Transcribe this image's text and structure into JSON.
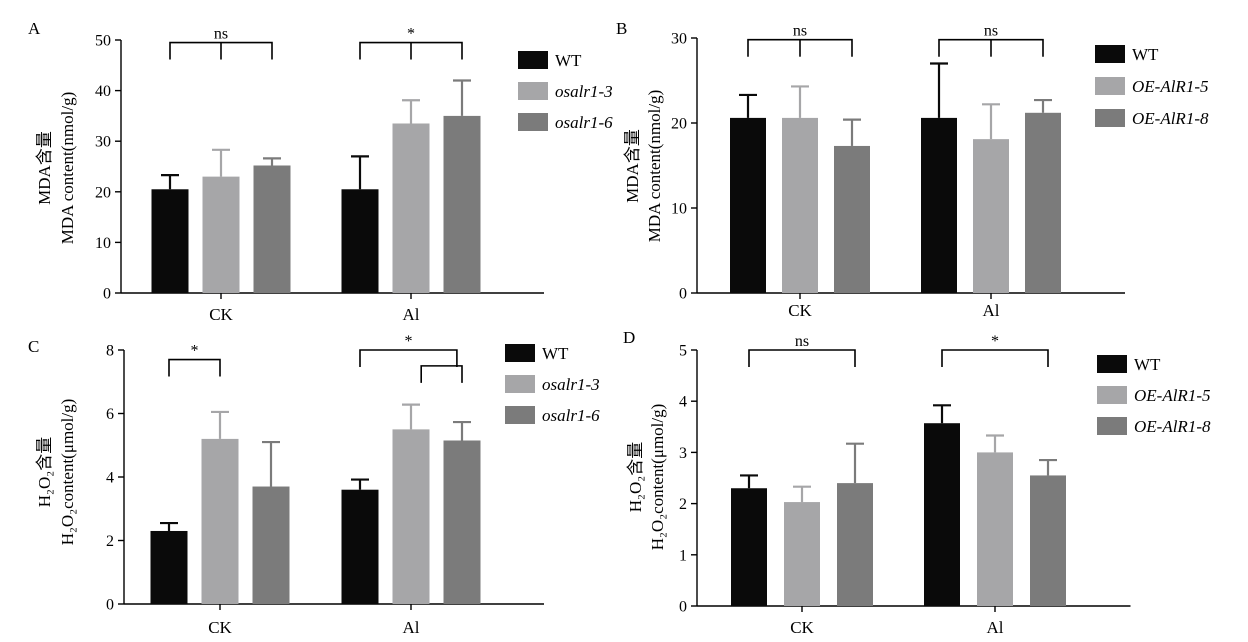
{
  "colors": {
    "WT": "#0a0a0a",
    "mutA": "#a6a6a8",
    "mutB": "#7b7b7b",
    "axis": "#000000"
  },
  "chart_data": [
    {
      "panel": "A",
      "type": "bar",
      "categories": [
        "CK",
        "Al"
      ],
      "ylabel_lines": [
        "MDA含量",
        "MDA content(nmol/g)"
      ],
      "ylim": [
        0,
        50
      ],
      "yticks": [
        0,
        10,
        20,
        30,
        40,
        50
      ],
      "series": [
        {
          "name": "WT",
          "italic": false,
          "values": [
            20.5,
            20.5
          ],
          "errors": [
            2.8,
            6.5
          ]
        },
        {
          "name": "osalr1-3",
          "italic": true,
          "values": [
            23.0,
            33.5
          ],
          "errors": [
            5.3,
            4.6
          ]
        },
        {
          "name": "osalr1-6",
          "italic": true,
          "values": [
            25.2,
            35.0
          ],
          "errors": [
            1.4,
            7.0
          ]
        }
      ],
      "significance": [
        {
          "label": "ns",
          "category": 0,
          "from": 0,
          "to": 2,
          "y": 49.5,
          "mid": true
        },
        {
          "label": "*",
          "category": 1,
          "from": 0,
          "to": 2,
          "y": 49.5,
          "mid": true
        }
      ]
    },
    {
      "panel": "B",
      "type": "bar",
      "categories": [
        "CK",
        "Al"
      ],
      "ylabel_lines": [
        "MDA含量",
        "MDA content(nmol/g)"
      ],
      "ylim": [
        0,
        30
      ],
      "yticks": [
        0,
        10,
        20,
        30
      ],
      "series": [
        {
          "name": "WT",
          "italic": false,
          "values": [
            20.6,
            20.6
          ],
          "errors": [
            2.7,
            6.4
          ]
        },
        {
          "name": "OE-AlR1-5",
          "italic": true,
          "values": [
            20.6,
            18.1
          ],
          "errors": [
            3.7,
            4.1
          ]
        },
        {
          "name": "OE-AlR1-8",
          "italic": true,
          "values": [
            17.3,
            21.2
          ],
          "errors": [
            3.1,
            1.5
          ]
        }
      ],
      "significance": [
        {
          "label": "ns",
          "category": 0,
          "from": 0,
          "to": 2,
          "y": 29.8,
          "mid": true
        },
        {
          "label": "ns",
          "category": 1,
          "from": 0,
          "to": 2,
          "y": 29.8,
          "mid": true
        }
      ]
    },
    {
      "panel": "C",
      "type": "bar",
      "categories": [
        "CK",
        "Al"
      ],
      "ylabel_lines": [
        "H₂O₂含量",
        "H₂O₂content(μmol/g)"
      ],
      "ylim": [
        0,
        8
      ],
      "yticks": [
        0,
        2,
        4,
        6,
        8
      ],
      "series": [
        {
          "name": "WT",
          "italic": false,
          "values": [
            2.3,
            3.6
          ],
          "errors": [
            0.25,
            0.32
          ]
        },
        {
          "name": "osalr1-3",
          "italic": true,
          "values": [
            5.2,
            5.5
          ],
          "errors": [
            0.85,
            0.78
          ]
        },
        {
          "name": "osalr1-6",
          "italic": true,
          "values": [
            3.7,
            5.15
          ],
          "errors": [
            1.4,
            0.58
          ]
        }
      ],
      "significance": [
        {
          "label": "*",
          "category": 0,
          "from": 0,
          "to": 1,
          "y": 7.7,
          "mid": false
        },
        {
          "label": "*",
          "category": 1,
          "from": 0,
          "to": 1.9,
          "y": 8.0,
          "mid": false
        },
        {
          "label": "",
          "category": 1,
          "from": 1.2,
          "to": 2,
          "y": 7.5,
          "mid": false
        }
      ]
    },
    {
      "panel": "D",
      "type": "bar",
      "categories": [
        "CK",
        "Al"
      ],
      "ylabel_lines": [
        "H₂O₂含量",
        "H₂O₂content(μmol/g)"
      ],
      "ylim": [
        0,
        5
      ],
      "yticks": [
        0,
        1,
        2,
        3,
        4,
        5
      ],
      "series": [
        {
          "name": "WT",
          "italic": false,
          "values": [
            2.3,
            3.57
          ],
          "errors": [
            0.25,
            0.35
          ]
        },
        {
          "name": "OE-AlR1-5",
          "italic": true,
          "values": [
            2.03,
            3.0
          ],
          "errors": [
            0.3,
            0.33
          ]
        },
        {
          "name": "OE-AlR1-8",
          "italic": true,
          "values": [
            2.4,
            2.55
          ],
          "errors": [
            0.77,
            0.3
          ]
        }
      ],
      "significance": [
        {
          "label": "ns",
          "category": 0,
          "from": 0,
          "to": 2,
          "y": 5.0,
          "mid": false
        },
        {
          "label": "*",
          "category": 1,
          "from": 0,
          "to": 2,
          "y": 5.0,
          "mid": false
        }
      ]
    }
  ]
}
